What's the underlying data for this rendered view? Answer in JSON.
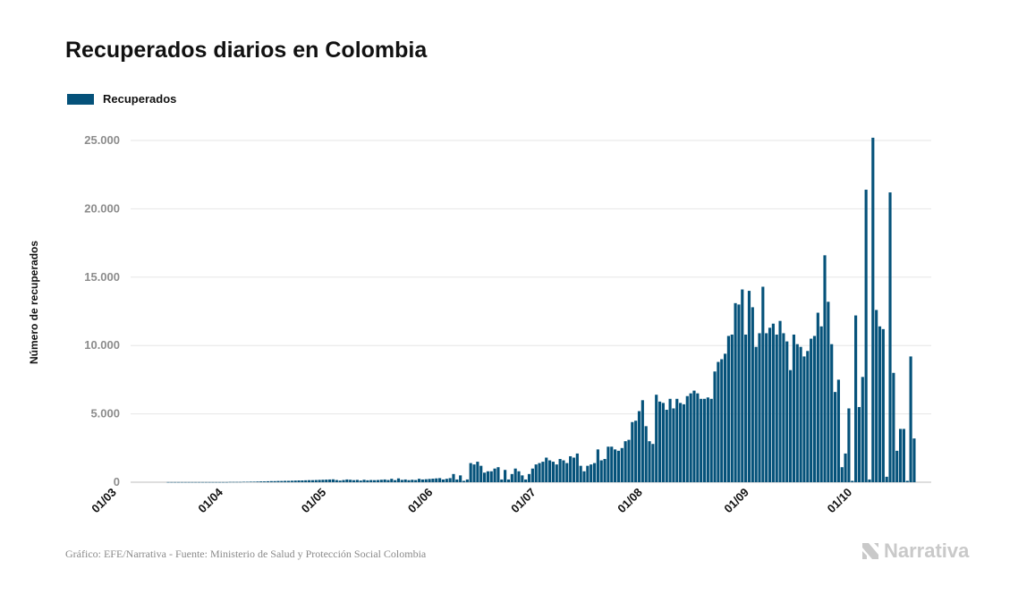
{
  "title": "Recuperados diarios en Colombia",
  "legend": {
    "label": "Recuperados",
    "color": "#05527a"
  },
  "source": "Gráfico: EFE/Narrativa - Fuente: Ministerio de Salud y Protección Social Colombia",
  "brand": {
    "name": "Narrativa",
    "icon": "narrativa-logo-icon"
  },
  "chart_data": {
    "type": "bar",
    "title": "Recuperados diarios en Colombia",
    "xlabel": "",
    "ylabel": "Número de recuperados",
    "ylim": [
      0,
      25000
    ],
    "grid": true,
    "legend_position": "top-left",
    "yticks": [
      {
        "value": 0,
        "label": "0"
      },
      {
        "value": 5000,
        "label": "5.000"
      },
      {
        "value": 10000,
        "label": "10.000"
      },
      {
        "value": 15000,
        "label": "15.000"
      },
      {
        "value": 20000,
        "label": "20.000"
      },
      {
        "value": 25000,
        "label": "25.000"
      }
    ],
    "xticks": [
      "01/03",
      "01/04",
      "01/05",
      "01/06",
      "01/07",
      "01/08",
      "01/09",
      "01/10"
    ],
    "x_start": "2020-03-06",
    "series": [
      {
        "name": "Recuperados",
        "color": "#05527a",
        "values": [
          0,
          0,
          0,
          0,
          0,
          0,
          0,
          0,
          0,
          0,
          10,
          10,
          10,
          10,
          10,
          10,
          10,
          10,
          10,
          10,
          10,
          10,
          10,
          10,
          10,
          10,
          10,
          10,
          20,
          20,
          20,
          20,
          30,
          30,
          40,
          40,
          50,
          60,
          60,
          70,
          80,
          80,
          90,
          90,
          100,
          100,
          110,
          120,
          130,
          130,
          140,
          150,
          150,
          160,
          170,
          180,
          190,
          200,
          210,
          160,
          120,
          160,
          200,
          180,
          150,
          170,
          120,
          180,
          140,
          160,
          150,
          160,
          180,
          200,
          160,
          250,
          150,
          280,
          170,
          200,
          150,
          180,
          160,
          250,
          200,
          220,
          240,
          260,
          280,
          300,
          200,
          250,
          300,
          600,
          200,
          500,
          100,
          200,
          1400,
          1300,
          1500,
          1200,
          700,
          800,
          800,
          1000,
          1100,
          200,
          900,
          200,
          600,
          1000,
          800,
          500,
          200,
          600,
          1000,
          1300,
          1400,
          1500,
          1800,
          1600,
          1500,
          1300,
          1700,
          1600,
          1400,
          1900,
          1800,
          2100,
          1200,
          800,
          1200,
          1300,
          1400,
          2400,
          1600,
          1700,
          2600,
          2600,
          2400,
          2300,
          2500,
          3000,
          3100,
          4400,
          4500,
          5200,
          6000,
          4100,
          3000,
          2800,
          6400,
          5900,
          5800,
          5300,
          6100,
          5400,
          6100,
          5800,
          5700,
          6300,
          6500,
          6700,
          6500,
          6100,
          6100,
          6200,
          6100,
          8100,
          8800,
          9000,
          9400,
          10700,
          10800,
          13100,
          13000,
          14100,
          10800,
          14000,
          12800,
          9900,
          10900,
          14300,
          10900,
          11300,
          11600,
          10800,
          11800,
          10900,
          10300,
          8200,
          10800,
          10100,
          9900,
          9200,
          9600,
          10500,
          10700,
          12400,
          11400,
          16600,
          13200,
          10100,
          6600,
          7500,
          1100,
          2100,
          5400,
          100,
          12200,
          5500,
          7700,
          21400,
          200,
          25200,
          12600,
          11400,
          11200,
          400,
          21200,
          8000,
          2300,
          3900,
          3900,
          100,
          9200,
          3200
        ]
      }
    ]
  }
}
